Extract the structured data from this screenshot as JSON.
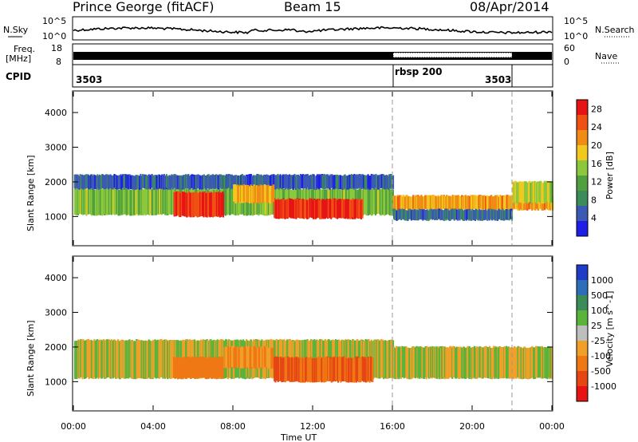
{
  "header": {
    "station": "Prince George (fitACF)",
    "beam": "Beam 15",
    "date": "08/Apr/2014"
  },
  "noise_panel": {
    "left_label": "N.Sky",
    "left_ticks": [
      "10^5",
      "10^0"
    ],
    "right_label": "N.Search",
    "right_ticks": [
      "10^5",
      "10^0"
    ]
  },
  "freq_panel": {
    "left_label_1": "Freq.",
    "left_label_2": "[MHz]",
    "left_ticks": [
      "18",
      "8"
    ],
    "right_label": "Nave",
    "right_ticks": [
      "60",
      "0"
    ]
  },
  "cpid_panel": {
    "label": "CPID",
    "segments": [
      "3503",
      "rbsp 200",
      "3503"
    ]
  },
  "colors": {
    "power_scale": [
      "#1e1ee6",
      "#3c5ab4",
      "#3c8c5a",
      "#50a040",
      "#8cc83c",
      "#f0c81e",
      "#f08c14",
      "#f05014",
      "#e61414"
    ],
    "velocity_scale": [
      "#1e3cc8",
      "#2e6eb8",
      "#3c8c5a",
      "#5ab43c",
      "#bebebe",
      "#f0a028",
      "#f07814",
      "#e64614",
      "#e61414"
    ],
    "ground_scatter": "#bebebe"
  },
  "chart_data": [
    {
      "type": "heatmap",
      "title": "Power",
      "xlabel": "Time UT",
      "ylabel": "Slant Range [km]",
      "x_ticks": [
        "00:00",
        "04:00",
        "08:00",
        "12:00",
        "16:00",
        "20:00",
        "00:00"
      ],
      "y_ticks": [
        "1000",
        "2000",
        "3000",
        "4000"
      ],
      "x_range_hours": [
        0,
        24
      ],
      "y_range_km": [
        180,
        4600
      ],
      "colorbar_label": "Power [dB]",
      "colorbar_ticks": [
        "4",
        "8",
        "12",
        "16",
        "20",
        "24",
        "28"
      ],
      "colorbar_range": [
        0,
        30
      ],
      "mode_change_lines_hours": [
        16,
        22
      ],
      "bands": [
        {
          "t0": 0.0,
          "t1": 16.0,
          "r0": 1050,
          "r1": 1800,
          "value": 14
        },
        {
          "t0": 0.0,
          "t1": 16.0,
          "r0": 1800,
          "r1": 2200,
          "value": 5
        },
        {
          "t0": 5.0,
          "t1": 7.5,
          "r0": 1000,
          "r1": 1700,
          "value": 26
        },
        {
          "t0": 10.0,
          "t1": 14.5,
          "r0": 950,
          "r1": 1500,
          "value": 27
        },
        {
          "t0": 8.0,
          "t1": 10.0,
          "r0": 1400,
          "r1": 1900,
          "value": 20
        },
        {
          "t0": 16.0,
          "t1": 24.0,
          "r0": 1200,
          "r1": 1600,
          "value": 21
        },
        {
          "t0": 16.0,
          "t1": 22.0,
          "r0": 900,
          "r1": 1200,
          "value": 6
        },
        {
          "t0": 22.0,
          "t1": 24.0,
          "r0": 1400,
          "r1": 2000,
          "value": 16
        }
      ]
    },
    {
      "type": "heatmap",
      "title": "Velocity",
      "xlabel": "Time UT",
      "ylabel": "Slant Range [km]",
      "x_ticks": [
        "00:00",
        "04:00",
        "08:00",
        "12:00",
        "16:00",
        "20:00",
        "00:00"
      ],
      "y_ticks": [
        "1000",
        "2000",
        "3000",
        "4000"
      ],
      "x_range_hours": [
        0,
        24
      ],
      "y_range_km": [
        180,
        4600
      ],
      "colorbar_label": "Velocity [m s^-1]",
      "colorbar_ticks": [
        "1000",
        "500",
        "100",
        "25",
        "-25",
        "-100",
        "-500",
        "-1000"
      ],
      "mode_change_lines_hours": [
        16,
        22
      ],
      "bands": [
        {
          "t0": 0.0,
          "t1": 16.0,
          "r0": 1100,
          "r1": 2200,
          "value": 0
        },
        {
          "t0": 16.0,
          "t1": 24.0,
          "r0": 1100,
          "r1": 2000,
          "value": 0
        },
        {
          "t0": 5.0,
          "t1": 7.5,
          "r0": 1100,
          "r1": 1700,
          "value": -200
        },
        {
          "t0": 7.5,
          "t1": 10.0,
          "r0": 1400,
          "r1": 2000,
          "value": -150
        },
        {
          "t0": 10.0,
          "t1": 15.0,
          "r0": 1000,
          "r1": 1700,
          "value": -300
        }
      ]
    }
  ]
}
